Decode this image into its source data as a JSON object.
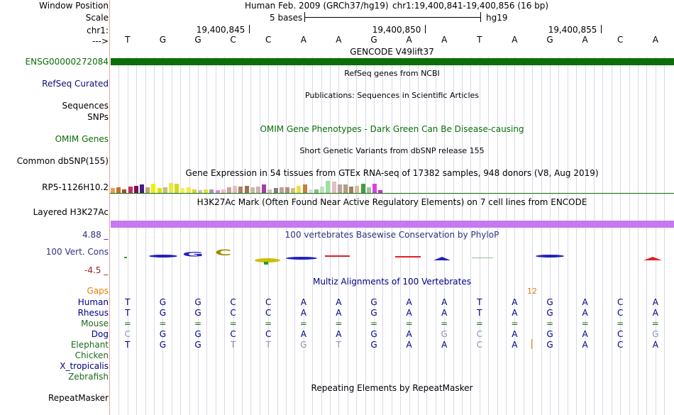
{
  "header": {
    "window_position_label": "Window Position",
    "scale_label": "Scale",
    "chrom_label": "chr1:",
    "strand_label": "--->",
    "assembly_text": "Human Feb. 2009 (GRCh37/hg19)",
    "position_text": "chr1:19,400,841-19,400,856 (16 bp)",
    "scale_text": "5 bases",
    "db_text": "hg19",
    "coord_ticks": [
      "19,400,845",
      "19,400,850",
      "19,400,855"
    ]
  },
  "sequence": [
    "T",
    "G",
    "G",
    "C",
    "C",
    "A",
    "A",
    "G",
    "A",
    "A",
    "T",
    "A",
    "G",
    "A",
    "C",
    "A"
  ],
  "tracks": {
    "gencode": {
      "label": "ENSG00000272084",
      "title": "GENCODE V49lift37",
      "color": "#0a6e0a"
    },
    "refseq": {
      "label": "RefSeq Curated",
      "title": "RefSeq genes from NCBI"
    },
    "sequences": {
      "label": "Sequences",
      "title": "Publications: Sequences in Scientific Articles"
    },
    "snps": {
      "label": "SNPs"
    },
    "omim": {
      "label": "OMIM Genes",
      "title": "OMIM Gene Phenotypes - Dark Green Can Be Disease-causing"
    },
    "dbsnp": {
      "label": "Common dbSNP(155)",
      "title": "Short Genetic Variants from dbSNP release 155"
    },
    "gtex": {
      "label": "RP5-1126H10.2",
      "title": "Gene Expression in 54 tissues from GTEx RNA-seq of 17382 samples, 948 donors (V8, Aug 2019)",
      "values": [
        0.5,
        0.6,
        0.4,
        0.7,
        0.8,
        0.9,
        0.6,
        1.0,
        0.5,
        0.6,
        1.1,
        1.0,
        0.5,
        0.6,
        0.4,
        0.3,
        0.4,
        0.4,
        0.3,
        0.4,
        0.6,
        0.8,
        0.7,
        0.8,
        0.6,
        0.7,
        0.9,
        0.4,
        0.5,
        0.6,
        0.6,
        0.5,
        0.8,
        0.9,
        0.4,
        0.4,
        0.7,
        1.3,
        1.2,
        0.9,
        0.9,
        0.7,
        0.8,
        1.0,
        0.6,
        1.0,
        0.3
      ],
      "colors": [
        "#e8a050",
        "#c87030",
        "#a05030",
        "#c03060",
        "#801050",
        "#402080",
        "#c0a080",
        "#f0f000",
        "#e0e000",
        "#c0c080",
        "#e8e840",
        "#d8d820",
        "#f0f060",
        "#f8e840",
        "#e0d030",
        "#c0c0c0",
        "#e0e040",
        "#a0a0a0",
        "#f080f0",
        "#e8c0c0",
        "#d0a0a0",
        "#e0c0c0",
        "#b08060",
        "#a07050",
        "#c0c0a0",
        "#d0b0b0",
        "#a040a0",
        "#d0c0c0",
        "#808080",
        "#c0a0a0",
        "#b09080",
        "#d0c080",
        "#f0e040",
        "#c08040",
        "#e0e0e0",
        "#80c080",
        "#c0e0c0",
        "#a0e0a0",
        "#e0c0c0",
        "#c0a0a0",
        "#b0a080",
        "#a08060",
        "#d0c0a0",
        "#40a040",
        "#a0c0a0",
        "#e040e0",
        "#c030c0"
      ]
    },
    "h3k27ac": {
      "label": "Layered H3K27Ac",
      "title": "H3K27Ac Mark (Often Found Near Active Regulatory Elements) on 7 cell lines from ENCODE",
      "color": "#c878f0"
    },
    "cons": {
      "label": "100 Vert. Cons",
      "title": "100 vertebrates Basewise Conservation by PhyloP",
      "max": "4.88 _",
      "min": "-4.5 _"
    },
    "multiz": {
      "title": "Multiz Alignments of 100 Vertebrates",
      "gaps_label": "Gaps",
      "gap_count": "12",
      "species": [
        {
          "name": "Human",
          "color": "#000080",
          "bases": [
            "T",
            "G",
            "G",
            "C",
            "C",
            "A",
            "A",
            "G",
            "A",
            "A",
            "T",
            "A",
            "G",
            "A",
            "C",
            "A"
          ]
        },
        {
          "name": "Rhesus",
          "color": "#000080",
          "bases": [
            "T",
            "G",
            "G",
            "C",
            "C",
            "A",
            "A",
            "G",
            "A",
            "A",
            "T",
            "A",
            "G",
            "A",
            "C",
            "A"
          ]
        },
        {
          "name": "Mouse",
          "color": "#1e6a1e",
          "bases": [
            "=",
            "=",
            "=",
            "=",
            "=",
            "=",
            "=",
            "=",
            "=",
            "=",
            "=",
            "=",
            "=",
            "=",
            "=",
            "="
          ]
        },
        {
          "name": "Dog",
          "color": "#000080",
          "bases": [
            "C",
            "G",
            "G",
            "C",
            "C",
            "A",
            "A",
            "G",
            "A",
            "G",
            "C",
            "A",
            "G",
            "A",
            "C",
            "G"
          ]
        },
        {
          "name": "Elephant",
          "color": "#1e6a1e",
          "bases": [
            "T",
            "G",
            "G",
            "T",
            "T",
            "G",
            "T",
            "G",
            "A",
            "A",
            "C",
            "A",
            "G",
            "A",
            "C",
            "A"
          ]
        },
        {
          "name": "Chicken",
          "color": "#1e6a1e",
          "bases": []
        },
        {
          "name": "X_tropicalis",
          "color": "#000080",
          "bases": []
        },
        {
          "name": "Zebrafish",
          "color": "#1e6a1e",
          "bases": []
        }
      ]
    },
    "rmsk": {
      "label": "RepeatMasker",
      "title": "Repeating Elements by RepeatMasker"
    }
  }
}
